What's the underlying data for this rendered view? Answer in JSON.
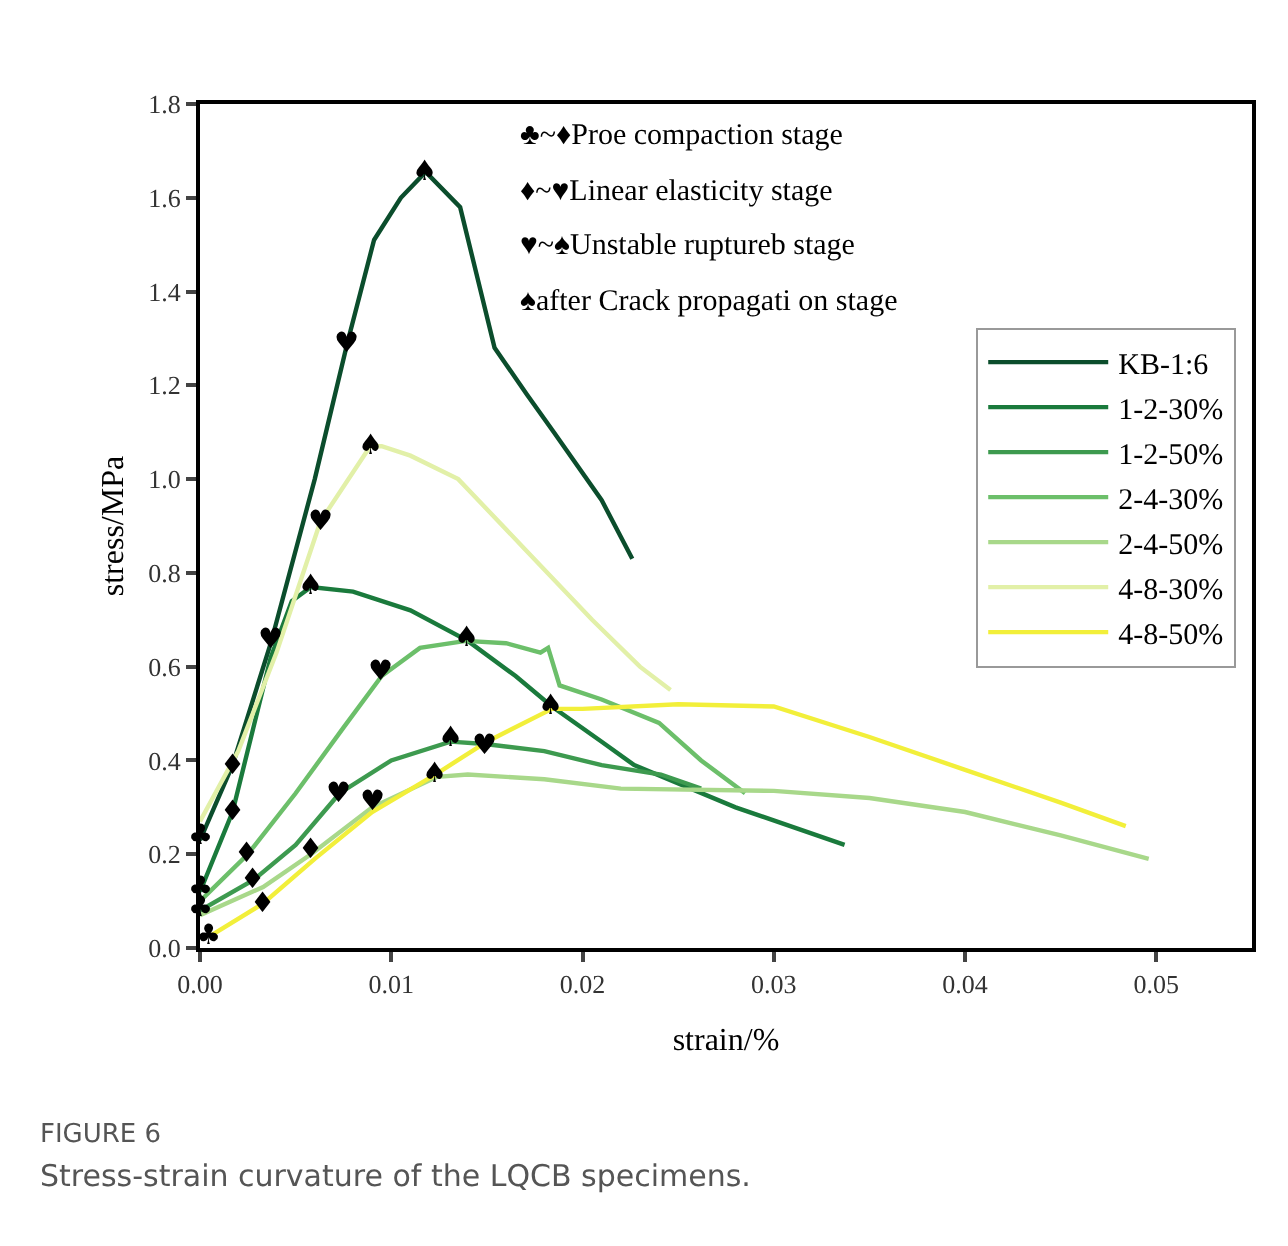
{
  "chart_data": {
    "type": "line",
    "title": "FIGURE 6",
    "subtitle": "Stress-strain curvature of the LQCB specimens.",
    "xlabel": "strain/%",
    "ylabel": "stress/MPa",
    "xlim": [
      0,
      0.055
    ],
    "ylim": [
      0,
      1.8
    ],
    "xticks": [
      {
        "value": 0,
        "label": "0.00"
      },
      {
        "value": 0.01,
        "label": "0.01"
      },
      {
        "value": 0.02,
        "label": "0.02"
      },
      {
        "value": 0.03,
        "label": "0.03"
      },
      {
        "value": 0.04,
        "label": "0.04"
      },
      {
        "value": 0.05,
        "label": "0.05"
      }
    ],
    "yticks": [
      {
        "value": 0,
        "label": "0.0"
      },
      {
        "value": 0.2,
        "label": "0.2"
      },
      {
        "value": 0.4,
        "label": "0.4"
      },
      {
        "value": 0.6,
        "label": "0.6"
      },
      {
        "value": 0.8,
        "label": "0.8"
      },
      {
        "value": 1.0,
        "label": "1.0"
      },
      {
        "value": 1.2,
        "label": "1.2"
      },
      {
        "value": 1.4,
        "label": "1.4"
      },
      {
        "value": 1.6,
        "label": "1.6"
      },
      {
        "value": 1.8,
        "label": "1.8"
      }
    ],
    "legend": "top right",
    "marker": "none",
    "line_style": "solid",
    "series": [
      {
        "name": "KB-1:6",
        "color": "#0b4d2c",
        "x": [
          0,
          0.0017,
          0.0037,
          0.006,
          0.0077,
          0.0091,
          0.0105,
          0.0118,
          0.0136,
          0.0154,
          0.0171,
          0.0185,
          0.021,
          0.0226
        ],
        "values": [
          0.23,
          0.39,
          0.65,
          1.0,
          1.29,
          1.51,
          1.6,
          1.655,
          1.58,
          1.28,
          1.18,
          1.1,
          0.955,
          0.83
        ]
      },
      {
        "name": "1-2-30%",
        "color": "#1a7a3c",
        "x": [
          0,
          0.0017,
          0.0037,
          0.0048,
          0.0058,
          0.008,
          0.011,
          0.014,
          0.0165,
          0.0184,
          0.021,
          0.0227,
          0.028,
          0.0337
        ],
        "values": [
          0.12,
          0.29,
          0.62,
          0.74,
          0.77,
          0.76,
          0.72,
          0.655,
          0.58,
          0.515,
          0.44,
          0.39,
          0.3,
          0.22
        ]
      },
      {
        "name": "1-2-50%",
        "color": "#3d9a4f",
        "x": [
          0,
          0.0028,
          0.005,
          0.0073,
          0.01,
          0.0131,
          0.0149,
          0.018,
          0.021,
          0.0241,
          0.0262
        ],
        "values": [
          0.08,
          0.145,
          0.22,
          0.33,
          0.4,
          0.44,
          0.435,
          0.42,
          0.39,
          0.37,
          0.34
        ]
      },
      {
        "name": "2-4-30%",
        "color": "#6cbf6a",
        "x": [
          0,
          0.0025,
          0.005,
          0.0075,
          0.0095,
          0.0115,
          0.0139,
          0.016,
          0.0178,
          0.0182,
          0.0188,
          0.021,
          0.024,
          0.0262,
          0.0285
        ],
        "values": [
          0.1,
          0.2,
          0.33,
          0.47,
          0.58,
          0.64,
          0.655,
          0.65,
          0.63,
          0.64,
          0.56,
          0.53,
          0.48,
          0.4,
          0.33
        ]
      },
      {
        "name": "2-4-50%",
        "color": "#a8d88a",
        "x": [
          0,
          0.0033,
          0.0058,
          0.009,
          0.0124,
          0.014,
          0.018,
          0.022,
          0.03,
          0.035,
          0.04,
          0.045,
          0.0496
        ],
        "values": [
          0.07,
          0.13,
          0.2,
          0.3,
          0.365,
          0.37,
          0.36,
          0.34,
          0.335,
          0.32,
          0.29,
          0.24,
          0.19
        ]
      },
      {
        "name": "4-8-30%",
        "color": "#e2f0a8",
        "x": [
          0,
          0.002,
          0.004,
          0.0063,
          0.0089,
          0.0095,
          0.011,
          0.0135,
          0.017,
          0.0205,
          0.023,
          0.0246
        ],
        "values": [
          0.27,
          0.42,
          0.63,
          0.91,
          1.07,
          1.07,
          1.05,
          1.0,
          0.85,
          0.7,
          0.6,
          0.55
        ]
      },
      {
        "name": "4-8-50%",
        "color": "#f2ef3a",
        "x": [
          0.0005,
          0.0033,
          0.006,
          0.009,
          0.0123,
          0.015,
          0.0184,
          0.02,
          0.025,
          0.03,
          0.035,
          0.04,
          0.045,
          0.0484
        ],
        "values": [
          0.025,
          0.095,
          0.19,
          0.29,
          0.37,
          0.44,
          0.51,
          0.51,
          0.52,
          0.515,
          0.45,
          0.38,
          0.31,
          0.26
        ]
      }
    ],
    "annotations": [
      "♣~♦Proe compaction stage",
      "♦~♥Linear elasticity stage",
      "♥~♠Unstable ruptureb stage",
      "♠after Crack propagati on stage",
      {
        "text": "♣",
        "x": 0,
        "y": 0.24
      },
      {
        "text": "♣",
        "x": 0,
        "y": 0.13
      },
      {
        "text": "♣",
        "x": 0,
        "y": 0.085
      },
      {
        "text": "♣",
        "x": 0.0005,
        "y": 0.025
      },
      {
        "text": "♦",
        "x": 0.0017,
        "y": 0.39
      },
      {
        "text": "♦",
        "x": 0.0017,
        "y": 0.29
      },
      {
        "text": "♦",
        "x": 0.0025,
        "y": 0.2
      },
      {
        "text": "♦",
        "x": 0.0028,
        "y": 0.145
      },
      {
        "text": "♦",
        "x": 0.0033,
        "y": 0.095
      },
      {
        "text": "♦",
        "x": 0.0058,
        "y": 0.21
      },
      {
        "text": "♥",
        "x": 0.0077,
        "y": 1.29
      },
      {
        "text": "♥",
        "x": 0.0063,
        "y": 0.91
      },
      {
        "text": "♥",
        "x": 0.0037,
        "y": 0.655
      },
      {
        "text": "♥",
        "x": 0.0095,
        "y": 0.59
      },
      {
        "text": "♥",
        "x": 0.0073,
        "y": 0.33
      },
      {
        "text": "♥",
        "x": 0.009,
        "y": 0.31
      },
      {
        "text": "♥",
        "x": 0.0149,
        "y": 0.43
      },
      {
        "text": "♠",
        "x": 0.0118,
        "y": 1.655
      },
      {
        "text": "♠",
        "x": 0.0089,
        "y": 1.07
      },
      {
        "text": "♠",
        "x": 0.0058,
        "y": 0.77
      },
      {
        "text": "♠",
        "x": 0.014,
        "y": 0.66
      },
      {
        "text": "♠",
        "x": 0.0184,
        "y": 0.515
      },
      {
        "text": "♠",
        "x": 0.0131,
        "y": 0.45
      },
      {
        "text": "♠",
        "x": 0.0123,
        "y": 0.37
      }
    ]
  }
}
